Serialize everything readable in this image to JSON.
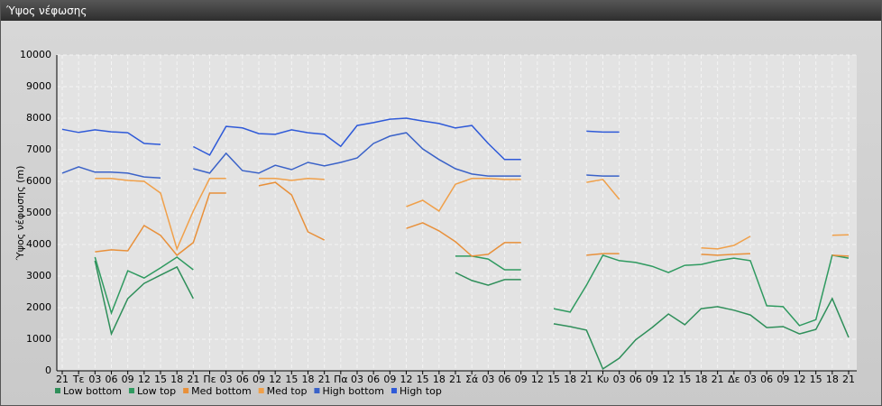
{
  "chart_data": {
    "type": "line",
    "title": "Ύψος νέφωσης",
    "ylabel": "Ύψος νέφωσης (m)",
    "categories": [
      "21",
      "Τε",
      "03",
      "06",
      "09",
      "12",
      "15",
      "18",
      "21",
      "Πε",
      "03",
      "06",
      "09",
      "12",
      "15",
      "18",
      "21",
      "Πα",
      "03",
      "06",
      "09",
      "12",
      "15",
      "18",
      "21",
      "Σά",
      "03",
      "06",
      "09",
      "12",
      "15",
      "18",
      "21",
      "Κυ",
      "03",
      "06",
      "09",
      "12",
      "15",
      "18",
      "21",
      "Δε",
      "03",
      "06",
      "09",
      "12",
      "15",
      "18",
      "21"
    ],
    "ylim": [
      0,
      10000
    ],
    "yticks": [
      0,
      1000,
      2000,
      3000,
      4000,
      5000,
      6000,
      7000,
      8000,
      9000,
      10000
    ],
    "grid": true,
    "series": [
      {
        "name": "Low bottom",
        "color": "#2f8f5a",
        "values": [
          null,
          null,
          3490,
          1170,
          2290,
          2770,
          3030,
          3290,
          2290,
          null,
          null,
          null,
          null,
          null,
          null,
          null,
          null,
          null,
          null,
          null,
          null,
          null,
          null,
          null,
          3110,
          2860,
          2710,
          2890,
          2890,
          null,
          1490,
          1400,
          1290,
          60,
          400,
          980,
          1370,
          1800,
          1460,
          1970,
          2030,
          1920,
          1770,
          1370,
          1400,
          1170,
          1310,
          2290,
          1060
        ]
      },
      {
        "name": "Low top",
        "color": "#2f9a60",
        "values": [
          null,
          null,
          3600,
          1830,
          3170,
          2940,
          3260,
          3600,
          3200,
          null,
          null,
          null,
          null,
          null,
          null,
          null,
          null,
          null,
          null,
          null,
          null,
          null,
          null,
          null,
          3630,
          3630,
          3540,
          3200,
          3200,
          null,
          1970,
          1860,
          2710,
          3660,
          3490,
          3430,
          3310,
          3110,
          3340,
          3370,
          3490,
          3570,
          3490,
          2060,
          2030,
          1430,
          1620,
          3660,
          3570
        ]
      },
      {
        "name": "Med bottom",
        "color": "#e8903a",
        "values": [
          null,
          null,
          3770,
          3830,
          3800,
          4600,
          4290,
          3660,
          4060,
          5630,
          5630,
          null,
          5860,
          5970,
          5570,
          4400,
          4140,
          null,
          null,
          null,
          null,
          4510,
          4690,
          4430,
          4090,
          3630,
          3690,
          4060,
          4060,
          null,
          null,
          null,
          3660,
          3710,
          3710,
          null,
          null,
          null,
          null,
          3690,
          3660,
          3690,
          3710,
          null,
          null,
          null,
          null,
          3660,
          3630
        ]
      },
      {
        "name": "Med top",
        "color": "#f0a04a",
        "values": [
          null,
          null,
          6090,
          6090,
          6030,
          6000,
          5630,
          3860,
          5060,
          6090,
          6090,
          null,
          6090,
          6090,
          6030,
          6090,
          6060,
          null,
          null,
          null,
          null,
          5200,
          5400,
          5060,
          5910,
          6090,
          6090,
          6060,
          6060,
          null,
          null,
          null,
          5970,
          6060,
          5430,
          null,
          null,
          null,
          null,
          3890,
          3860,
          3970,
          4260,
          null,
          null,
          null,
          null,
          4290,
          4310
        ]
      },
      {
        "name": "High bottom",
        "color": "#3a62c8",
        "values": [
          6260,
          6460,
          6290,
          6290,
          6260,
          6140,
          6110,
          null,
          6400,
          6260,
          6890,
          6340,
          6260,
          6510,
          6370,
          6600,
          6490,
          6600,
          6740,
          7200,
          7430,
          7540,
          7030,
          6690,
          6400,
          6230,
          6170,
          6170,
          6170,
          null,
          null,
          null,
          6200,
          6170,
          6170,
          null,
          null,
          null,
          null,
          null,
          null,
          null,
          null,
          null,
          null,
          null,
          null,
          null,
          null
        ]
      },
      {
        "name": "High top",
        "color": "#2f5ad8",
        "values": [
          7650,
          7550,
          7630,
          7570,
          7540,
          7200,
          7170,
          null,
          7100,
          6830,
          7740,
          7690,
          7510,
          7490,
          7630,
          7540,
          7490,
          7110,
          7770,
          7860,
          7970,
          8000,
          7910,
          7830,
          7690,
          7770,
          7200,
          6690,
          6690,
          null,
          null,
          null,
          7590,
          7560,
          7560,
          null,
          null,
          null,
          null,
          null,
          null,
          null,
          null,
          null,
          null,
          null,
          null,
          null,
          null
        ]
      }
    ]
  }
}
